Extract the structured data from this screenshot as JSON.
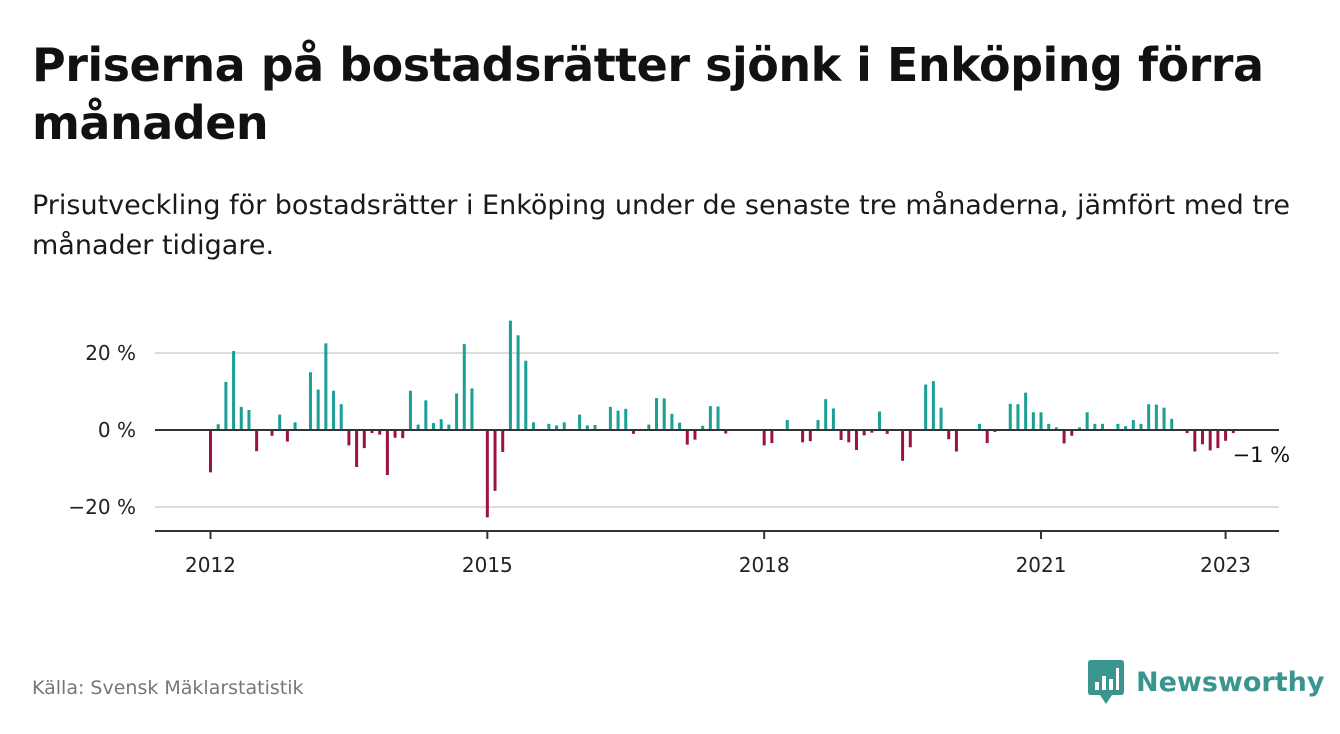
{
  "title": "Priserna på bostadsrätter sjönk i Enköping förra månaden",
  "subtitle": "Prisutveckling för bostadsrätter i Enköping under de senaste tre månaderna, jämfört med tre månader tidigare.",
  "source": "Källa: Svensk Mäklarstatistik",
  "brand": {
    "name": "Newsworthy",
    "icon": "newsworthy-logo-icon",
    "color": "#3a958f"
  },
  "colors": {
    "positive": "#1a9e96",
    "negative": "#9b1246",
    "axis": "#333333",
    "grid": "#dddddd"
  },
  "chart_data": {
    "type": "bar",
    "x_start": "2011-06",
    "x_end": "2023-04",
    "yticks": [
      {
        "value": -20,
        "label": "−20 %"
      },
      {
        "value": 0,
        "label": "0 %"
      },
      {
        "value": 20,
        "label": "20 %"
      }
    ],
    "xticks": [
      {
        "date": "2012-01",
        "label": "2012"
      },
      {
        "date": "2015-01",
        "label": "2015"
      },
      {
        "date": "2018-01",
        "label": "2018"
      },
      {
        "date": "2021-01",
        "label": "2021"
      },
      {
        "date": "2023-01",
        "label": "2023"
      }
    ],
    "ylim": [
      -26,
      30
    ],
    "end_label": "−1 %",
    "series": [
      {
        "values": [
          {
            "date": "2012-01",
            "value": -11
          },
          {
            "date": "2012-02",
            "value": 1.5
          },
          {
            "date": "2012-03",
            "value": 12.5
          },
          {
            "date": "2012-04",
            "value": 20.5
          },
          {
            "date": "2012-05",
            "value": 6
          },
          {
            "date": "2012-06",
            "value": 5.2
          },
          {
            "date": "2012-07",
            "value": -5.5
          },
          {
            "date": "2012-08",
            "value": 0
          },
          {
            "date": "2012-09",
            "value": -1.5
          },
          {
            "date": "2012-10",
            "value": 4
          },
          {
            "date": "2012-11",
            "value": -3
          },
          {
            "date": "2012-12",
            "value": 2
          },
          {
            "date": "2013-01",
            "value": 0
          },
          {
            "date": "2013-02",
            "value": 15
          },
          {
            "date": "2013-03",
            "value": 10.5
          },
          {
            "date": "2013-04",
            "value": 22.5
          },
          {
            "date": "2013-05",
            "value": 10.2
          },
          {
            "date": "2013-06",
            "value": 6.7
          },
          {
            "date": "2013-07",
            "value": -4
          },
          {
            "date": "2013-08",
            "value": -9.6
          },
          {
            "date": "2013-09",
            "value": -4.7
          },
          {
            "date": "2013-10",
            "value": -0.8
          },
          {
            "date": "2013-11",
            "value": -1.2
          },
          {
            "date": "2013-12",
            "value": -11.7
          },
          {
            "date": "2014-01",
            "value": -2
          },
          {
            "date": "2014-02",
            "value": -2.1
          },
          {
            "date": "2014-03",
            "value": 10.2
          },
          {
            "date": "2014-04",
            "value": 1.4
          },
          {
            "date": "2014-05",
            "value": 7.7
          },
          {
            "date": "2014-06",
            "value": 1.8
          },
          {
            "date": "2014-07",
            "value": 2.8
          },
          {
            "date": "2014-08",
            "value": 1.4
          },
          {
            "date": "2014-09",
            "value": 9.5
          },
          {
            "date": "2014-10",
            "value": 22.3
          },
          {
            "date": "2014-11",
            "value": 10.8
          },
          {
            "date": "2014-12",
            "value": 0
          },
          {
            "date": "2015-01",
            "value": -22.7
          },
          {
            "date": "2015-02",
            "value": -15.8
          },
          {
            "date": "2015-03",
            "value": -5.7
          },
          {
            "date": "2015-04",
            "value": 28.4
          },
          {
            "date": "2015-05",
            "value": 24.6
          },
          {
            "date": "2015-06",
            "value": 18
          },
          {
            "date": "2015-07",
            "value": 2
          },
          {
            "date": "2015-08",
            "value": 0
          },
          {
            "date": "2015-09",
            "value": 1.6
          },
          {
            "date": "2015-10",
            "value": 1.2
          },
          {
            "date": "2015-11",
            "value": 2
          },
          {
            "date": "2015-12",
            "value": 0
          },
          {
            "date": "2016-01",
            "value": 4
          },
          {
            "date": "2016-02",
            "value": 1.2
          },
          {
            "date": "2016-03",
            "value": 1.3
          },
          {
            "date": "2016-04",
            "value": 0
          },
          {
            "date": "2016-05",
            "value": 6
          },
          {
            "date": "2016-06",
            "value": 5
          },
          {
            "date": "2016-07",
            "value": 5.5
          },
          {
            "date": "2016-08",
            "value": -1
          },
          {
            "date": "2016-09",
            "value": 0
          },
          {
            "date": "2016-10",
            "value": 1.4
          },
          {
            "date": "2016-11",
            "value": 8.3
          },
          {
            "date": "2016-12",
            "value": 8.2
          },
          {
            "date": "2017-01",
            "value": 4.2
          },
          {
            "date": "2017-02",
            "value": 1.9
          },
          {
            "date": "2017-03",
            "value": -3.8
          },
          {
            "date": "2017-04",
            "value": -2.5
          },
          {
            "date": "2017-05",
            "value": 1.1
          },
          {
            "date": "2017-06",
            "value": 6.2
          },
          {
            "date": "2017-07",
            "value": 6.1
          },
          {
            "date": "2017-08",
            "value": -0.9
          },
          {
            "date": "2017-09",
            "value": 0
          },
          {
            "date": "2017-10",
            "value": 0
          },
          {
            "date": "2017-11",
            "value": 0
          },
          {
            "date": "2017-12",
            "value": 0
          },
          {
            "date": "2018-01",
            "value": -4
          },
          {
            "date": "2018-02",
            "value": -3.4
          },
          {
            "date": "2018-03",
            "value": 0
          },
          {
            "date": "2018-04",
            "value": 2.6
          },
          {
            "date": "2018-05",
            "value": 0
          },
          {
            "date": "2018-06",
            "value": -3.2
          },
          {
            "date": "2018-07",
            "value": -2.9
          },
          {
            "date": "2018-08",
            "value": 2.6
          },
          {
            "date": "2018-09",
            "value": 8
          },
          {
            "date": "2018-10",
            "value": 5.6
          },
          {
            "date": "2018-11",
            "value": -2.6
          },
          {
            "date": "2018-12",
            "value": -3.2
          },
          {
            "date": "2019-01",
            "value": -5.2
          },
          {
            "date": "2019-02",
            "value": -1.4
          },
          {
            "date": "2019-03",
            "value": -0.7
          },
          {
            "date": "2019-04",
            "value": 4.8
          },
          {
            "date": "2019-05",
            "value": -1
          },
          {
            "date": "2019-06",
            "value": 0
          },
          {
            "date": "2019-07",
            "value": -8
          },
          {
            "date": "2019-08",
            "value": -4.5
          },
          {
            "date": "2019-09",
            "value": 0
          },
          {
            "date": "2019-10",
            "value": 11.8
          },
          {
            "date": "2019-11",
            "value": 12.7
          },
          {
            "date": "2019-12",
            "value": 5.8
          },
          {
            "date": "2020-01",
            "value": -2.4
          },
          {
            "date": "2020-02",
            "value": -5.6
          },
          {
            "date": "2020-03",
            "value": 0
          },
          {
            "date": "2020-04",
            "value": 0
          },
          {
            "date": "2020-05",
            "value": 1.6
          },
          {
            "date": "2020-06",
            "value": -3.4
          },
          {
            "date": "2020-07",
            "value": -0.5
          },
          {
            "date": "2020-08",
            "value": 0
          },
          {
            "date": "2020-09",
            "value": 6.8
          },
          {
            "date": "2020-10",
            "value": 6.7
          },
          {
            "date": "2020-11",
            "value": 9.7
          },
          {
            "date": "2020-12",
            "value": 4.6
          },
          {
            "date": "2021-01",
            "value": 4.6
          },
          {
            "date": "2021-02",
            "value": 1.6
          },
          {
            "date": "2021-03",
            "value": 0.7
          },
          {
            "date": "2021-04",
            "value": -3.5
          },
          {
            "date": "2021-05",
            "value": -1.5
          },
          {
            "date": "2021-06",
            "value": 0.7
          },
          {
            "date": "2021-07",
            "value": 4.6
          },
          {
            "date": "2021-08",
            "value": 1.6
          },
          {
            "date": "2021-09",
            "value": 1.6
          },
          {
            "date": "2021-10",
            "value": 0
          },
          {
            "date": "2021-11",
            "value": 1.6
          },
          {
            "date": "2021-12",
            "value": 1
          },
          {
            "date": "2022-01",
            "value": 2.6
          },
          {
            "date": "2022-02",
            "value": 1.6
          },
          {
            "date": "2022-03",
            "value": 6.7
          },
          {
            "date": "2022-04",
            "value": 6.6
          },
          {
            "date": "2022-05",
            "value": 5.8
          },
          {
            "date": "2022-06",
            "value": 2.9
          },
          {
            "date": "2022-07",
            "value": 0
          },
          {
            "date": "2022-08",
            "value": -0.8
          },
          {
            "date": "2022-09",
            "value": -5.6
          },
          {
            "date": "2022-10",
            "value": -3.7
          },
          {
            "date": "2022-11",
            "value": -5.3
          },
          {
            "date": "2022-12",
            "value": -4.7
          },
          {
            "date": "2023-01",
            "value": -2.8
          },
          {
            "date": "2023-02",
            "value": -0.8
          }
        ]
      }
    ]
  }
}
